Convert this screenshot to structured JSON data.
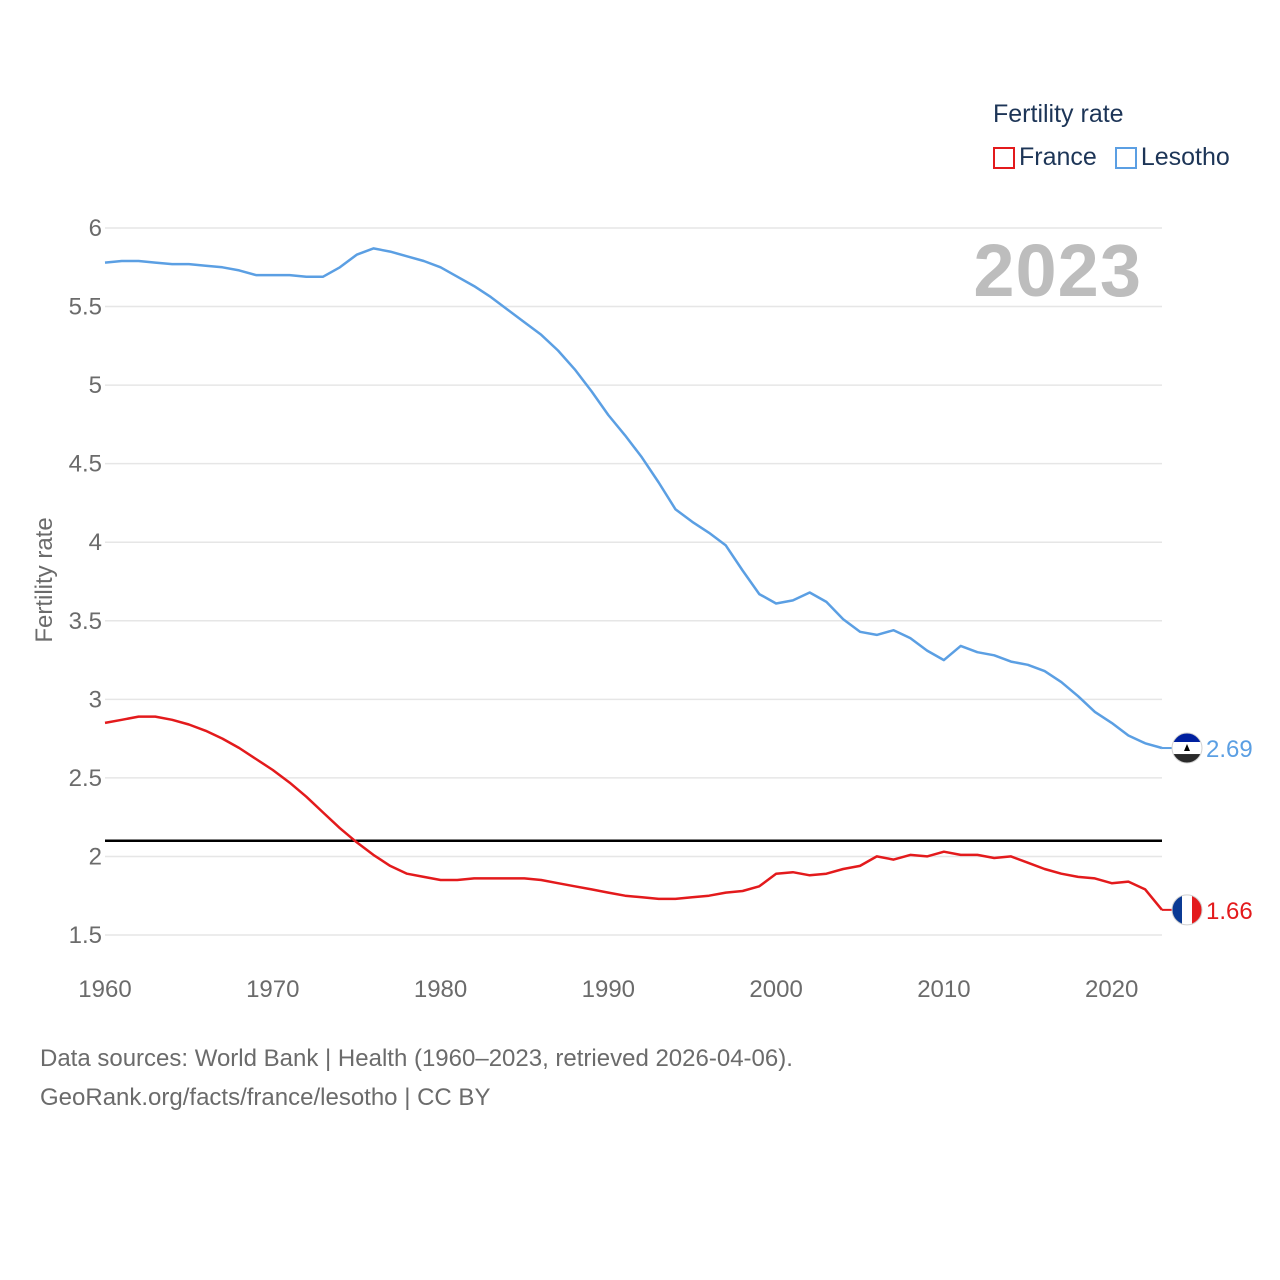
{
  "chart_data": {
    "type": "line",
    "title": "Fertility rate",
    "ylabel": "Fertility rate",
    "xlabel": "",
    "xlim": [
      1960,
      2023
    ],
    "ylim": [
      1.5,
      6
    ],
    "yticks": [
      1.5,
      2,
      2.5,
      3,
      3.5,
      4,
      4.5,
      5,
      5.5,
      6
    ],
    "ytick_labels": [
      "1.5",
      "2",
      "2.5",
      "3",
      "3.5",
      "4",
      "4.5",
      "5",
      "5.5",
      "6"
    ],
    "xticks": [
      1960,
      1970,
      1980,
      1990,
      2000,
      2010,
      2020
    ],
    "xtick_labels": [
      "1960",
      "1970",
      "1980",
      "1990",
      "2000",
      "2010",
      "2020"
    ],
    "reference_line": {
      "value": 2.1,
      "color": "#000000"
    },
    "current_year": "2023",
    "grid": true,
    "legend_position": "top-right",
    "x": [
      1960,
      1961,
      1962,
      1963,
      1964,
      1965,
      1966,
      1967,
      1968,
      1969,
      1970,
      1971,
      1972,
      1973,
      1974,
      1975,
      1976,
      1977,
      1978,
      1979,
      1980,
      1981,
      1982,
      1983,
      1984,
      1985,
      1986,
      1987,
      1988,
      1989,
      1990,
      1991,
      1992,
      1993,
      1994,
      1995,
      1996,
      1997,
      1998,
      1999,
      2000,
      2001,
      2002,
      2003,
      2004,
      2005,
      2006,
      2007,
      2008,
      2009,
      2010,
      2011,
      2012,
      2013,
      2014,
      2015,
      2016,
      2017,
      2018,
      2019,
      2020,
      2021,
      2022,
      2023
    ],
    "series": [
      {
        "name": "France",
        "color": "#e31a1c",
        "end_label": "1.66",
        "values": [
          2.85,
          2.87,
          2.89,
          2.89,
          2.87,
          2.84,
          2.8,
          2.75,
          2.69,
          2.62,
          2.55,
          2.47,
          2.38,
          2.28,
          2.18,
          2.09,
          2.01,
          1.94,
          1.89,
          1.87,
          1.85,
          1.85,
          1.86,
          1.86,
          1.86,
          1.86,
          1.85,
          1.83,
          1.81,
          1.79,
          1.77,
          1.75,
          1.74,
          1.73,
          1.73,
          1.74,
          1.75,
          1.77,
          1.78,
          1.81,
          1.89,
          1.9,
          1.88,
          1.89,
          1.92,
          1.94,
          2.0,
          1.98,
          2.01,
          2.0,
          2.03,
          2.01,
          2.01,
          1.99,
          2.0,
          1.96,
          1.92,
          1.89,
          1.87,
          1.86,
          1.83,
          1.84,
          1.79,
          1.66
        ]
      },
      {
        "name": "Lesotho",
        "color": "#5b9fe3",
        "end_label": "2.69",
        "values": [
          5.78,
          5.79,
          5.79,
          5.78,
          5.77,
          5.77,
          5.76,
          5.75,
          5.73,
          5.7,
          5.7,
          5.7,
          5.69,
          5.69,
          5.75,
          5.83,
          5.87,
          5.85,
          5.82,
          5.79,
          5.75,
          5.69,
          5.63,
          5.56,
          5.48,
          5.4,
          5.32,
          5.22,
          5.1,
          4.96,
          4.81,
          4.68,
          4.54,
          4.38,
          4.21,
          4.13,
          4.06,
          3.98,
          3.82,
          3.67,
          3.61,
          3.63,
          3.68,
          3.62,
          3.51,
          3.43,
          3.41,
          3.44,
          3.39,
          3.31,
          3.25,
          3.34,
          3.3,
          3.28,
          3.24,
          3.22,
          3.18,
          3.11,
          3.02,
          2.92,
          2.85,
          2.77,
          2.72,
          2.69
        ]
      }
    ]
  },
  "sources": {
    "line1": "Data sources: World Bank | Health (1960–2023, retrieved 2026-04-06).",
    "line2": "GeoRank.org/facts/france/lesotho | CC BY"
  },
  "icons": {
    "france_flag": "france-flag-icon",
    "lesotho_flag": "lesotho-flag-icon"
  }
}
